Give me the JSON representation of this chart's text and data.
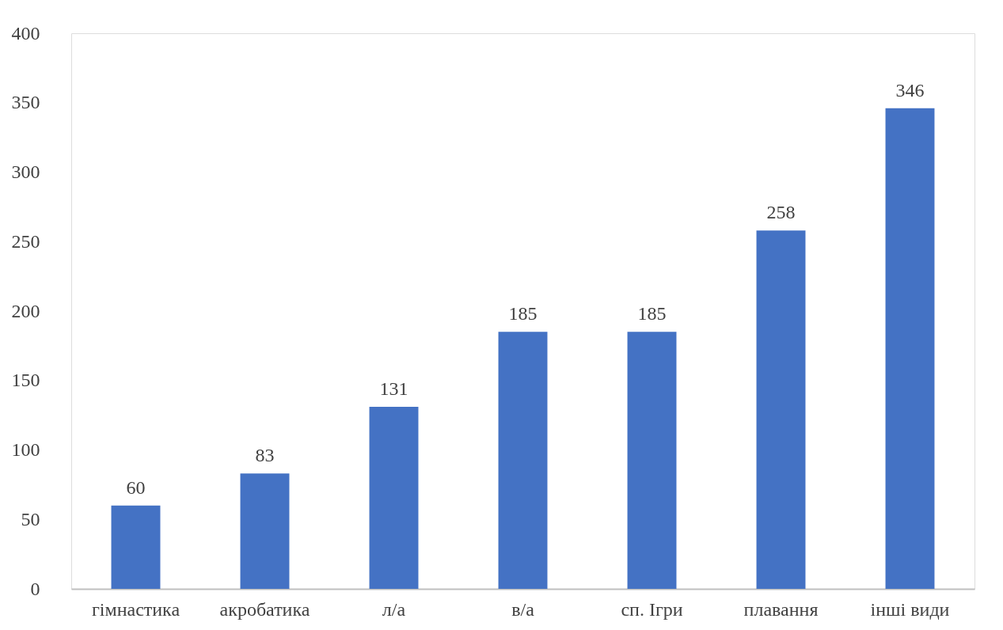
{
  "chart_data": {
    "type": "bar",
    "categories": [
      "гімнастика",
      "акробатика",
      "л/а",
      "в/а",
      "сп. Ігри",
      "плавання",
      "інші види"
    ],
    "values": [
      60,
      83,
      131,
      185,
      185,
      258,
      346
    ],
    "color": "#4472c4",
    "ylim": [
      0,
      400
    ],
    "yticks": [
      0,
      50,
      100,
      150,
      200,
      250,
      300,
      350,
      400
    ],
    "grid": false,
    "data_labels": true
  }
}
